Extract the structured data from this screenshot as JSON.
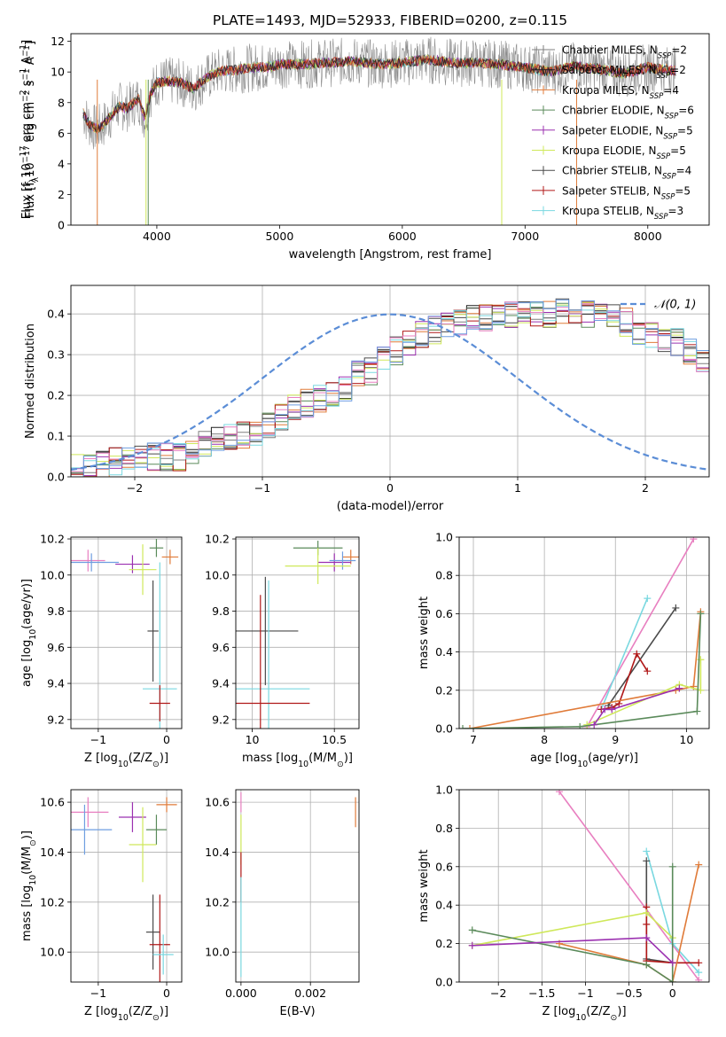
{
  "chart_data": [
    {
      "type": "line",
      "title": "PLATE=1493, MJD=52933, FIBERID=0200, z=0.115",
      "xlabel": "wavelength [Angstrom, rest frame]",
      "ylabel": "Flux [f$_\\lambda$10$^{-17}$ erg cm$^{-2}$ s$^{-1}$ A$^{-1}$]",
      "ylabel_parts": [
        "Flux [f",
        "λ",
        "10",
        "−17",
        " erg cm",
        "−2",
        " s",
        "−1",
        " A",
        "−1",
        "]"
      ],
      "xlim": [
        3300,
        8500
      ],
      "ylim": [
        0,
        12.5
      ],
      "xticks": [
        4000,
        5000,
        6000,
        7000,
        8000
      ],
      "yticks": [
        0,
        2,
        4,
        6,
        8,
        10,
        12
      ],
      "legend_position": "right",
      "spectrum": {
        "x": [
          3400,
          3450,
          3500,
          3550,
          3600,
          3650,
          3700,
          3750,
          3800,
          3850,
          3900,
          3950,
          4000,
          4100,
          4200,
          4300,
          4400,
          4500,
          4600,
          4700,
          4800,
          4900,
          5000,
          5200,
          5400,
          5600,
          5800,
          6000,
          6200,
          6400,
          6600,
          6800,
          7000,
          7200,
          7400,
          7600,
          7800,
          8000,
          8200
        ],
        "y": [
          7.3,
          6.6,
          6.3,
          6.4,
          6.9,
          7.4,
          7.8,
          7.6,
          7.9,
          8.3,
          7.0,
          8.6,
          9.3,
          9.4,
          9.3,
          8.9,
          9.6,
          10.0,
          10.1,
          10.2,
          10.3,
          10.3,
          10.5,
          10.5,
          10.6,
          10.7,
          10.5,
          10.6,
          10.8,
          10.6,
          10.6,
          10.5,
          10.3,
          10.0,
          10.4,
          10.2,
          9.9,
          10.3,
          10.1
        ]
      },
      "series": [
        {
          "name": "Chabrier MILES",
          "nssp": "2",
          "color": "#7f7f7f"
        },
        {
          "name": "Salpeter MILES",
          "nssp": "2",
          "color": "#1f1f1f"
        },
        {
          "name": "Kroupa MILES",
          "nssp": "4",
          "color": "#e07b39"
        },
        {
          "name": "Chabrier ELODIE",
          "nssp": "6",
          "color": "#5a8a5a"
        },
        {
          "name": "Salpeter ELODIE",
          "nssp": "5",
          "color": "#9b30b0"
        },
        {
          "name": "Kroupa ELODIE",
          "nssp": "5",
          "color": "#cfe85a"
        },
        {
          "name": "Chabrier STELIB",
          "nssp": "4",
          "color": "#4a4a4a"
        },
        {
          "name": "Salpeter STELIB",
          "nssp": "5",
          "color": "#b01818"
        },
        {
          "name": "Kroupa STELIB",
          "nssp": "3",
          "color": "#7ad8e0"
        }
      ]
    },
    {
      "type": "line",
      "xlabel": "(data-model)/error",
      "ylabel": "Normed distribution",
      "xlim": [
        -2.5,
        2.5
      ],
      "ylim": [
        0,
        0.47
      ],
      "xticks": [
        -2,
        -1,
        0,
        1,
        2
      ],
      "yticks": [
        0.0,
        0.1,
        0.2,
        0.3,
        0.4
      ],
      "grid": true,
      "legend_position": "top-right",
      "reference_curve": {
        "name": "𝒩(0, 1)",
        "color": "#5b8dd6",
        "style": "dashed"
      },
      "bin_width": 0.1,
      "bin_start": -2.5,
      "bar_heights": [
        0.02,
        0.03,
        0.03,
        0.04,
        0.04,
        0.05,
        0.05,
        0.05,
        0.05,
        0.06,
        0.08,
        0.09,
        0.1,
        0.1,
        0.11,
        0.13,
        0.15,
        0.17,
        0.18,
        0.19,
        0.2,
        0.22,
        0.25,
        0.26,
        0.29,
        0.31,
        0.33,
        0.35,
        0.36,
        0.37,
        0.38,
        0.39,
        0.39,
        0.4,
        0.4,
        0.4,
        0.4,
        0.4,
        0.41,
        0.4,
        0.4,
        0.39,
        0.39,
        0.38,
        0.36,
        0.35,
        0.34,
        0.33,
        0.31,
        0.29,
        0.26,
        0.24,
        0.22,
        0.2,
        0.18,
        0.17,
        0.15,
        0.13,
        0.11,
        0.1,
        0.09,
        0.08,
        0.07,
        0.06,
        0.05,
        0.05,
        0.04,
        0.04,
        0.03,
        0.03
      ],
      "series_colors": [
        "#7f7f7f",
        "#1f1f1f",
        "#e07b39",
        "#5a8a5a",
        "#9b30b0",
        "#cfe85a",
        "#4a4a4a",
        "#b01818",
        "#7ad8e0",
        "#e87fc0",
        "#6e9ee0"
      ]
    },
    {
      "type": "scatter",
      "xlabel": "Z [log$_{10}$(Z/Z$_\\odot$)]",
      "ylabel": "age  [log$_{10}$(age/yr)]",
      "xlim": [
        -1.4,
        0.22
      ],
      "ylim": [
        9.15,
        10.21
      ],
      "xticks": [
        -1,
        0
      ],
      "yticks": [
        9.2,
        9.4,
        9.6,
        9.8,
        10.0,
        10.2
      ],
      "grid": true,
      "points": [
        {
          "x": -1.15,
          "y": 10.08,
          "xerr": 0.25,
          "yerr": 0.06,
          "color": "#e87fc0"
        },
        {
          "x": -1.1,
          "y": 10.07,
          "xerr": 0.4,
          "yerr": 0.05,
          "color": "#6e9ee0"
        },
        {
          "x": -0.5,
          "y": 10.06,
          "xerr": 0.25,
          "yerr": 0.05,
          "color": "#9b30b0"
        },
        {
          "x": -0.35,
          "y": 10.03,
          "xerr": 0.2,
          "yerr": 0.14,
          "color": "#cfe85a"
        },
        {
          "x": -0.15,
          "y": 10.15,
          "xerr": 0.1,
          "yerr": 0.05,
          "color": "#5a8a5a"
        },
        {
          "x": 0.05,
          "y": 10.1,
          "xerr": 0.12,
          "yerr": 0.04,
          "color": "#e07b39"
        },
        {
          "x": -0.2,
          "y": 9.69,
          "xerr": 0.08,
          "yerr": 0.28,
          "color": "#4a4a4a"
        },
        {
          "x": -0.1,
          "y": 9.37,
          "xerr": 0.25,
          "yerr": 0.7,
          "color": "#7ad8e0"
        },
        {
          "x": -0.1,
          "y": 9.29,
          "xerr": 0.15,
          "yerr": 0.1,
          "color": "#b01818"
        }
      ]
    },
    {
      "type": "scatter",
      "xlabel": "mass [log$_{10}$(M/M$_\\odot$)]",
      "xlim": [
        9.9,
        10.65
      ],
      "ylim": [
        9.15,
        10.21
      ],
      "xticks": [
        10.0,
        10.5
      ],
      "yticks": [
        9.2,
        9.4,
        9.6,
        9.8,
        10.0,
        10.2
      ],
      "grid": true,
      "points": [
        {
          "x": 10.4,
          "y": 10.15,
          "xerr": 0.15,
          "yerr": 0.04,
          "color": "#5a8a5a"
        },
        {
          "x": 10.6,
          "y": 10.1,
          "xerr": 0.05,
          "yerr": 0.04,
          "color": "#e07b39"
        },
        {
          "x": 10.5,
          "y": 10.07,
          "xerr": 0.1,
          "yerr": 0.05,
          "color": "#9b30b0"
        },
        {
          "x": 10.55,
          "y": 10.08,
          "xerr": 0.08,
          "yerr": 0.05,
          "color": "#6e9ee0"
        },
        {
          "x": 10.4,
          "y": 10.05,
          "xerr": 0.2,
          "yerr": 0.1,
          "color": "#cfe85a"
        },
        {
          "x": 10.08,
          "y": 9.69,
          "xerr": 0.2,
          "yerr": 0.3,
          "color": "#4a4a4a"
        },
        {
          "x": 10.1,
          "y": 9.37,
          "xerr": 0.25,
          "yerr": 0.6,
          "color": "#7ad8e0"
        },
        {
          "x": 10.05,
          "y": 9.29,
          "xerr": 0.3,
          "yerr": 0.6,
          "color": "#b01818"
        }
      ]
    },
    {
      "type": "line",
      "xlabel": "age  [log$_{10}$(age/yr)]",
      "ylabel": "mass weight",
      "xlim": [
        6.8,
        10.32
      ],
      "ylim": [
        0,
        1
      ],
      "xticks": [
        7,
        8,
        9,
        10
      ],
      "yticks": [
        0.0,
        0.2,
        0.4,
        0.6,
        0.8,
        1.0
      ],
      "grid": true,
      "series": [
        {
          "color": "#e87fc0",
          "x": [
            8.6,
            10.1
          ],
          "y": [
            0.01,
            0.99
          ]
        },
        {
          "color": "#7ad8e0",
          "x": [
            8.8,
            9.45
          ],
          "y": [
            0.1,
            0.68
          ]
        },
        {
          "color": "#4a4a4a",
          "x": [
            8.9,
            9.85
          ],
          "y": [
            0.12,
            0.63
          ]
        },
        {
          "color": "#b01818",
          "x": [
            8.8,
            8.95,
            9.05,
            9.3,
            9.45
          ],
          "y": [
            0.1,
            0.11,
            0.13,
            0.39,
            0.3
          ]
        },
        {
          "color": "#e07b39",
          "x": [
            6.95,
            9.85,
            10.1,
            10.2
          ],
          "y": [
            0.0,
            0.2,
            0.22,
            0.61
          ]
        },
        {
          "color": "#cfe85a",
          "x": [
            8.6,
            9.9,
            10.2,
            10.2
          ],
          "y": [
            0.02,
            0.23,
            0.2,
            0.36
          ]
        },
        {
          "color": "#5a8a5a",
          "x": [
            6.85,
            8.5,
            10.15,
            10.2
          ],
          "y": [
            0.0,
            0.01,
            0.09,
            0.6
          ]
        },
        {
          "color": "#9b30b0",
          "x": [
            8.7,
            8.85,
            8.95,
            9.9
          ],
          "y": [
            0.02,
            0.1,
            0.1,
            0.21
          ]
        }
      ]
    },
    {
      "type": "scatter",
      "xlabel": "Z [log$_{10}$(Z/Z$_\\odot$)]",
      "ylabel": "mass [log$_{10}$(M/M$_\\odot$)]",
      "xlim": [
        -1.4,
        0.22
      ],
      "ylim": [
        9.88,
        10.65
      ],
      "xticks": [
        -1,
        0
      ],
      "yticks": [
        10.0,
        10.2,
        10.4,
        10.6
      ],
      "grid": true,
      "points": [
        {
          "x": -1.15,
          "y": 10.56,
          "xerr": 0.3,
          "yerr": 0.06,
          "color": "#e87fc0"
        },
        {
          "x": -1.2,
          "y": 10.49,
          "xerr": 0.4,
          "yerr": 0.1,
          "color": "#6e9ee0"
        },
        {
          "x": -0.5,
          "y": 10.54,
          "xerr": 0.2,
          "yerr": 0.06,
          "color": "#9b30b0"
        },
        {
          "x": 0.0,
          "y": 10.59,
          "xerr": 0.15,
          "yerr": 0.03,
          "color": "#e07b39"
        },
        {
          "x": -0.15,
          "y": 10.49,
          "xerr": 0.15,
          "yerr": 0.06,
          "color": "#5a8a5a"
        },
        {
          "x": -0.35,
          "y": 10.43,
          "xerr": 0.2,
          "yerr": 0.15,
          "color": "#cfe85a"
        },
        {
          "x": -0.2,
          "y": 10.08,
          "xerr": 0.1,
          "yerr": 0.15,
          "color": "#4a4a4a"
        },
        {
          "x": -0.1,
          "y": 10.03,
          "xerr": 0.15,
          "yerr": 0.2,
          "color": "#b01818"
        },
        {
          "x": -0.05,
          "y": 9.99,
          "xerr": 0.15,
          "yerr": 0.08,
          "color": "#7ad8e0"
        }
      ]
    },
    {
      "type": "scatter",
      "xlabel": "E(B-V)",
      "xlim": [
        -0.00015,
        0.0034
      ],
      "ylim": [
        9.88,
        10.65
      ],
      "xticks": [
        0.0,
        0.002
      ],
      "xticklabels": [
        "0.000",
        "0.002"
      ],
      "yticks": [
        10.0,
        10.2,
        10.4,
        10.6
      ],
      "grid": true,
      "points": [
        {
          "x": 0.0,
          "y": 10.6,
          "xerr": 0.0,
          "yerr": 0.04,
          "color": "#e87fc0"
        },
        {
          "x": 0.0,
          "y": 10.45,
          "xerr": 0.0,
          "yerr": 0.1,
          "color": "#cfe85a"
        },
        {
          "x": 0.0,
          "y": 10.3,
          "xerr": 0.0,
          "yerr": 0.1,
          "color": "#b01818"
        },
        {
          "x": 0.0,
          "y": 10.1,
          "xerr": 0.0,
          "yerr": 0.2,
          "color": "#7ad8e0"
        },
        {
          "x": 0.0033,
          "y": 10.56,
          "xerr": 0.0,
          "yerr": 0.06,
          "color": "#e07b39"
        }
      ]
    },
    {
      "type": "line",
      "xlabel": "Z [log$_{10}$(Z/Z$_\\odot$)]",
      "ylabel": "mass weight",
      "xlim": [
        -2.45,
        0.42
      ],
      "ylim": [
        0,
        1
      ],
      "xticks": [
        -2.0,
        -1.5,
        -1.0,
        -0.5,
        0.0
      ],
      "yticks": [
        0.0,
        0.2,
        0.4,
        0.6,
        0.8,
        1.0
      ],
      "grid": true,
      "series": [
        {
          "color": "#e87fc0",
          "x": [
            -1.3,
            0.3
          ],
          "y": [
            0.99,
            0.01
          ]
        },
        {
          "color": "#7ad8e0",
          "x": [
            -0.3,
            0.0,
            0.3
          ],
          "y": [
            0.68,
            0.2,
            0.05
          ]
        },
        {
          "color": "#4a4a4a",
          "x": [
            -0.3,
            -0.3,
            0.0
          ],
          "y": [
            0.63,
            0.12,
            0.1
          ]
        },
        {
          "color": "#b01818",
          "x": [
            -0.3,
            -0.3,
            -0.3,
            0.0,
            0.3
          ],
          "y": [
            0.39,
            0.3,
            0.11,
            0.1,
            0.1
          ]
        },
        {
          "color": "#e07b39",
          "x": [
            -1.3,
            -0.3,
            0.0,
            0.3
          ],
          "y": [
            0.2,
            0.09,
            0.0,
            0.61
          ]
        },
        {
          "color": "#cfe85a",
          "x": [
            -2.3,
            -0.3,
            0.0
          ],
          "y": [
            0.19,
            0.36,
            0.23
          ]
        },
        {
          "color": "#5a8a5a",
          "x": [
            -2.3,
            -0.3,
            0.0,
            0.0
          ],
          "y": [
            0.27,
            0.09,
            0.0,
            0.6
          ]
        },
        {
          "color": "#9b30b0",
          "x": [
            -2.3,
            -0.3,
            0.0
          ],
          "y": [
            0.19,
            0.23,
            0.1
          ]
        }
      ]
    }
  ]
}
